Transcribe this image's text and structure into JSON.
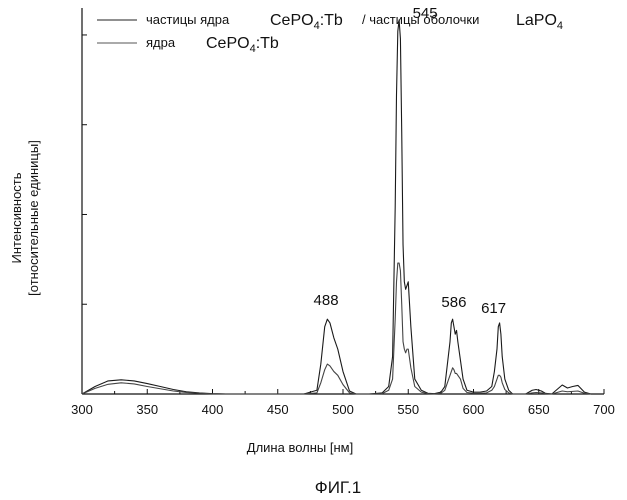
{
  "chart_data": {
    "type": "line",
    "xlabel": "Длина волны [нм]",
    "ylabel_line1": "Интенсивность",
    "ylabel_line2": "[относительные единицы]",
    "xlim": [
      300,
      700
    ],
    "ylim": [
      0,
      100
    ],
    "x_ticks": [
      300,
      350,
      400,
      450,
      500,
      550,
      600,
      650,
      700
    ],
    "y_tick_values": [
      0,
      24,
      48,
      72,
      96
    ],
    "grid": false,
    "legend_placement": "top-left",
    "caption": "ФИГ.1",
    "legend": [
      {
        "label": "частицы ядра",
        "formula_a_main": "CePO",
        "formula_a_sub": "4",
        "formula_a_tail": ":Tb",
        "separator": "/ частицы оболочки",
        "formula_b_main": "LaPO",
        "formula_b_sub": "4"
      },
      {
        "label": "ядра",
        "formula_a_main": "CePO",
        "formula_a_sub": "4",
        "formula_a_tail": ":Tb"
      }
    ],
    "annotations": [
      {
        "text": "488",
        "x": 487
      },
      {
        "text": "545",
        "x": 543
      },
      {
        "text": "586",
        "x": 585
      },
      {
        "text": "617",
        "x": 620
      }
    ],
    "series": [
      {
        "x": [
          300,
          310,
          320,
          330,
          340,
          350,
          360,
          370,
          380,
          390,
          400,
          410,
          420,
          430,
          440,
          450,
          460,
          470,
          480,
          483,
          486,
          488,
          490,
          493,
          496,
          500,
          505,
          510,
          520,
          530,
          535,
          538,
          540,
          541,
          542,
          543,
          544,
          545,
          546,
          547,
          548,
          549,
          550,
          552,
          555,
          560,
          565,
          570,
          575,
          578,
          580,
          582,
          583,
          584,
          585,
          586,
          587,
          588,
          590,
          592,
          595,
          600,
          605,
          610,
          614,
          616,
          618,
          619,
          620,
          621,
          622,
          624,
          627,
          630,
          640,
          645,
          648,
          652,
          655,
          660,
          665,
          668,
          672,
          676,
          680,
          685,
          690
        ],
        "values": [
          0,
          2,
          3.5,
          3.8,
          3.5,
          2.8,
          2,
          1.2,
          0.6,
          0.3,
          0.1,
          0,
          0,
          0,
          0,
          0,
          0,
          0,
          1,
          8,
          18,
          20,
          19,
          15,
          12,
          6,
          0.8,
          0,
          0,
          0.3,
          2,
          10,
          50,
          80,
          97,
          100,
          95,
          70,
          40,
          30,
          28,
          29,
          30,
          18,
          4,
          1,
          0.2,
          0.1,
          0.5,
          2,
          8,
          14,
          19,
          20,
          18,
          16,
          17,
          14,
          9,
          4,
          1,
          0.5,
          0.5,
          0.8,
          2,
          6,
          12,
          18,
          19,
          16,
          10,
          4,
          1,
          0,
          0,
          1,
          1.2,
          0.8,
          0.2,
          0,
          1.5,
          2.4,
          1.6,
          2,
          2.3,
          0.5,
          0
        ]
      },
      {
        "x": [
          300,
          310,
          320,
          330,
          340,
          350,
          360,
          370,
          380,
          390,
          400,
          410,
          420,
          430,
          440,
          450,
          460,
          470,
          480,
          483,
          486,
          488,
          490,
          493,
          496,
          500,
          505,
          510,
          520,
          530,
          535,
          538,
          540,
          541,
          542,
          543,
          544,
          545,
          546,
          547,
          548,
          549,
          550,
          552,
          555,
          560,
          565,
          570,
          575,
          578,
          580,
          582,
          583,
          584,
          585,
          586,
          587,
          588,
          590,
          592,
          595,
          600,
          605,
          610,
          614,
          616,
          618,
          619,
          620,
          621,
          622,
          624,
          627,
          630,
          640,
          645,
          648,
          652,
          655,
          660,
          665,
          668,
          672,
          676,
          680,
          685,
          690
        ],
        "values": [
          0,
          1.5,
          2.6,
          3,
          2.7,
          2,
          1.4,
          0.8,
          0.4,
          0.2,
          0.05,
          0,
          0,
          0,
          0,
          0,
          0,
          0,
          0.3,
          3,
          6.5,
          8,
          7.5,
          6,
          5,
          2.5,
          0.3,
          0,
          0,
          0.1,
          1,
          4,
          20,
          30,
          35,
          35,
          33,
          24,
          14,
          12,
          11,
          12,
          12,
          7,
          2,
          0.5,
          0.1,
          0,
          0.2,
          1,
          3,
          5,
          6,
          7,
          6.5,
          5.5,
          5.5,
          5,
          4,
          1.5,
          0.4,
          0.2,
          0.2,
          0.3,
          1,
          2,
          4,
          5,
          5,
          4.5,
          3,
          1.2,
          0.3,
          0,
          0,
          0.3,
          0.4,
          0.3,
          0.1,
          0,
          0.5,
          0.8,
          0.6,
          0.7,
          0.8,
          0.2,
          0
        ]
      }
    ]
  }
}
